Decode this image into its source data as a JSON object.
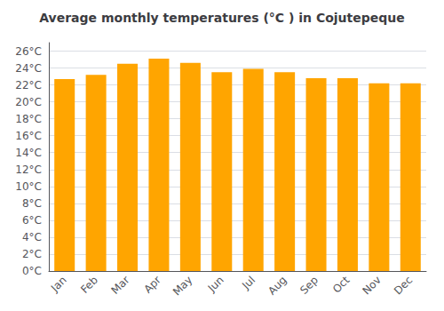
{
  "chart_data": {
    "type": "bar",
    "title": "Average monthly temperatures (°C ) in Cojutepeque",
    "categories": [
      "Jan",
      "Feb",
      "Mar",
      "Apr",
      "May",
      "Jun",
      "Jul",
      "Aug",
      "Sep",
      "Oct",
      "Nov",
      "Dec"
    ],
    "values": [
      22.7,
      23.2,
      24.5,
      25.1,
      24.6,
      23.5,
      23.9,
      23.5,
      22.8,
      22.8,
      22.2,
      22.2
    ],
    "color": "#FFA500",
    "ylim": [
      0,
      27
    ],
    "yticks": [
      {
        "value": 0,
        "label": "0°C"
      },
      {
        "value": 2,
        "label": "2°C"
      },
      {
        "value": 4,
        "label": "4°C"
      },
      {
        "value": 6,
        "label": "6°C"
      },
      {
        "value": 8,
        "label": "8°C"
      },
      {
        "value": 10,
        "label": "10°C"
      },
      {
        "value": 12,
        "label": "12°C"
      },
      {
        "value": 14,
        "label": "14°C"
      },
      {
        "value": 16,
        "label": "16°C"
      },
      {
        "value": 18,
        "label": "18°C"
      },
      {
        "value": 20,
        "label": "20°C"
      },
      {
        "value": 22,
        "label": "22°C"
      },
      {
        "value": 24,
        "label": "24°C"
      },
      {
        "value": 26,
        "label": "26°C"
      }
    ],
    "grid": true
  }
}
